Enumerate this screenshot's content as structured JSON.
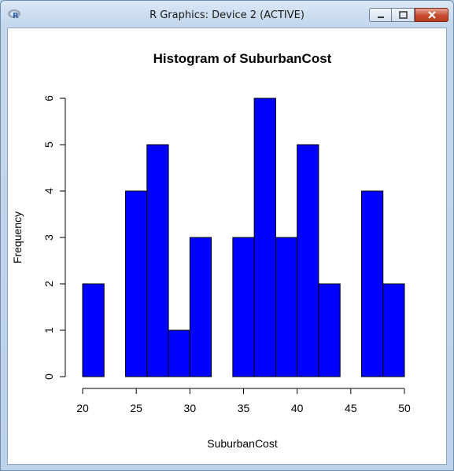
{
  "window": {
    "title": "R Graphics: Device 2 (ACTIVE)",
    "icon": "r-logo-icon",
    "controls": [
      "minimize-icon",
      "maximize-icon",
      "close-icon"
    ],
    "colors": {
      "close": "#c74b2f",
      "frame": "#bcd2ea"
    }
  },
  "chart_data": {
    "type": "bar",
    "title": "Histogram of SuburbanCost",
    "xlabel": "SuburbanCost",
    "ylabel": "Frequency",
    "bin_edges": [
      20,
      22,
      24,
      26,
      28,
      30,
      32,
      34,
      36,
      38,
      40,
      42,
      44,
      46,
      48,
      50
    ],
    "values": [
      2,
      0,
      4,
      5,
      1,
      3,
      0,
      3,
      6,
      3,
      5,
      2,
      0,
      4,
      2
    ],
    "xlim": [
      20,
      50
    ],
    "ylim": [
      0,
      6
    ],
    "x_ticks": [
      "20",
      "25",
      "30",
      "35",
      "40",
      "45",
      "50"
    ],
    "y_ticks": [
      "0",
      "1",
      "2",
      "3",
      "4",
      "5",
      "6"
    ],
    "bar_color": "#0000ff",
    "grid": false,
    "legend": "none"
  }
}
